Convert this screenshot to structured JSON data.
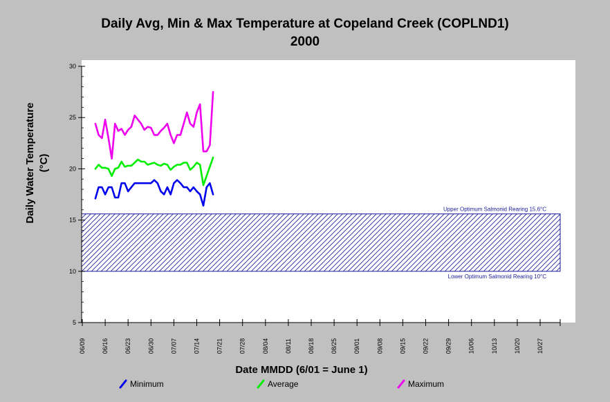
{
  "chart_data": {
    "type": "line",
    "title": "Daily Avg, Min & Max Temperature at Copeland Creek (COPLND1)",
    "subtitle": "2000",
    "xlabel": "Date MMDD (6/01 = June 1)",
    "ylabel_line1": "Daily Water Temperature",
    "ylabel_line2": "(°C)",
    "ylim": [
      5,
      30
    ],
    "yticks": [
      5,
      10,
      15,
      20,
      25,
      30
    ],
    "xlim": [
      "06/09",
      "11/02"
    ],
    "xticks": [
      "06/09",
      "06/16",
      "06/23",
      "06/30",
      "07/07",
      "07/14",
      "07/21",
      "07/28",
      "08/04",
      "08/11",
      "08/18",
      "08/25",
      "09/01",
      "09/08",
      "09/15",
      "09/22",
      "09/29",
      "10/06",
      "10/13",
      "10/20",
      "10/27"
    ],
    "x": [
      "06/13",
      "06/14",
      "06/15",
      "06/16",
      "06/17",
      "06/18",
      "06/19",
      "06/20",
      "06/21",
      "06/22",
      "06/23",
      "06/24",
      "06/25",
      "06/26",
      "06/27",
      "06/28",
      "06/29",
      "06/30",
      "07/01",
      "07/02",
      "07/03",
      "07/04",
      "07/05",
      "07/06",
      "07/07",
      "07/08",
      "07/09",
      "07/10",
      "07/11",
      "07/12",
      "07/13",
      "07/14",
      "07/15",
      "07/16",
      "07/17",
      "07/18",
      "07/19"
    ],
    "series": [
      {
        "name": "Minimum",
        "color": "#0000ee",
        "values": [
          17.1,
          18.2,
          18.2,
          17.5,
          18.2,
          18.2,
          17.2,
          17.2,
          18.6,
          18.6,
          17.8,
          18.2,
          18.6,
          18.6,
          18.6,
          18.6,
          18.6,
          18.6,
          18.9,
          18.6,
          17.8,
          17.5,
          18.2,
          17.5,
          18.6,
          18.9,
          18.6,
          18.2,
          18.2,
          17.8,
          18.2,
          17.8,
          17.5,
          16.4,
          18.2,
          18.6,
          17.5
        ]
      },
      {
        "name": "Average",
        "color": "#00ee00",
        "values": [
          20.0,
          20.4,
          20.1,
          20.1,
          20.0,
          19.3,
          20.0,
          20.1,
          20.7,
          20.2,
          20.3,
          20.3,
          20.6,
          20.9,
          20.7,
          20.7,
          20.4,
          20.5,
          20.6,
          20.4,
          20.3,
          20.5,
          20.4,
          19.9,
          20.2,
          20.4,
          20.4,
          20.6,
          20.6,
          19.9,
          20.2,
          20.6,
          20.4,
          18.4,
          19.3,
          20.2,
          21.1
        ]
      },
      {
        "name": "Maximum",
        "color": "#ee00ee",
        "values": [
          24.4,
          23.3,
          23.0,
          24.8,
          23.0,
          21.0,
          24.4,
          23.7,
          23.9,
          23.3,
          23.8,
          24.1,
          25.2,
          24.8,
          24.4,
          23.8,
          24.1,
          24.0,
          23.3,
          23.3,
          23.7,
          24.0,
          24.4,
          23.3,
          22.5,
          23.3,
          23.3,
          24.4,
          25.5,
          24.4,
          24.1,
          25.5,
          26.3,
          21.7,
          21.7,
          22.3,
          27.5
        ]
      }
    ],
    "reference_band": {
      "upper": 15.6,
      "lower": 10,
      "upper_label": "Upper Optimum Salmonid Rearing 15.6°C",
      "lower_label": "Lower Optimum Salmonid Rearing 10°C",
      "color": "#1a1a9a"
    },
    "legend_position": "bottom"
  }
}
